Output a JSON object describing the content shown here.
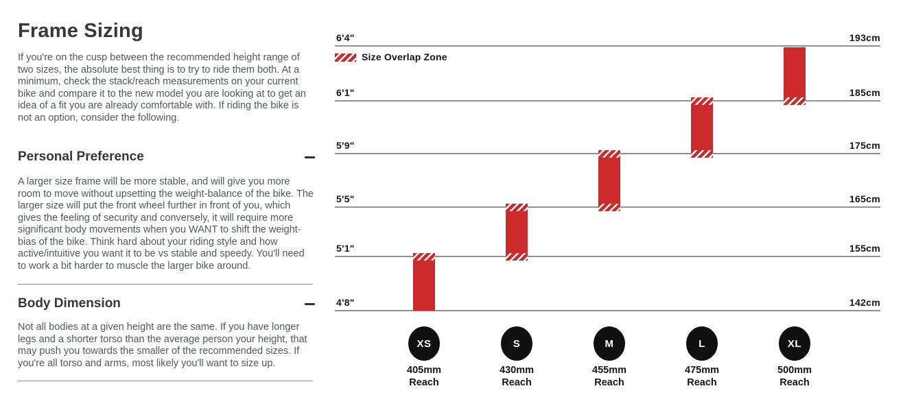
{
  "left": {
    "title": "Frame Sizing",
    "intro": "If you're on the cusp between the recommended height range of two sizes, the absolute best thing is to try to ride them both. At a minimum, check the stack/reach measurements on your current bike and compare it to the new model you are looking at to get an idea of a fit you are already comfortable with. If riding the bike is not an option, consider the following.",
    "sections": [
      {
        "heading": "Personal Preference",
        "collapse_icon": "minus",
        "body": "A larger size frame will be more stable, and will give you more room to move without upsetting the weight-balance of the bike. The larger size will put the front wheel further in front of you, which gives the feeling of security and conversely, it will require more significant body movements when you WANT to shift the weight-bias of the bike. Think hard about your riding style and how active/intuitive you want it to be vs stable and speedy. You'll need to work a bit harder to muscle the larger bike around."
      },
      {
        "heading": "Body Dimension",
        "collapse_icon": "minus",
        "body": "Not all bodies at a given height are the same. If you have longer legs and a shorter torso than the average person your height, that may push you towards the smaller of the recommended sizes. If you're all torso and arms, most likely you'll want to size up."
      }
    ]
  },
  "chart": {
    "legend_label": "Size Overlap Zone",
    "rows": [
      {
        "ft": "6'4\"",
        "cm": "193cm"
      },
      {
        "ft": "6'1\"",
        "cm": "185cm"
      },
      {
        "ft": "5'9\"",
        "cm": "175cm"
      },
      {
        "ft": "5'5\"",
        "cm": "165cm"
      },
      {
        "ft": "5'1\"",
        "cm": "155cm"
      },
      {
        "ft": "4'8\"",
        "cm": "142cm"
      }
    ],
    "sizes": [
      {
        "label": "XS",
        "reach_value": "405mm",
        "reach_word": "Reach",
        "top_row": 4,
        "bottom_row": 5,
        "overlap_top": true,
        "overlap_bottom": false
      },
      {
        "label": "S",
        "reach_value": "430mm",
        "reach_word": "Reach",
        "top_row": 3,
        "bottom_row": 4,
        "overlap_top": true,
        "overlap_bottom": true
      },
      {
        "label": "M",
        "reach_value": "455mm",
        "reach_word": "Reach",
        "top_row": 2,
        "bottom_row": 3,
        "overlap_top": true,
        "overlap_bottom": true
      },
      {
        "label": "L",
        "reach_value": "475mm",
        "reach_word": "Reach",
        "top_row": 1,
        "bottom_row": 2,
        "overlap_top": true,
        "overlap_bottom": true
      },
      {
        "label": "XL",
        "reach_value": "500mm",
        "reach_word": "Reach",
        "top_row": 0,
        "bottom_row": 1,
        "overlap_top": false,
        "overlap_bottom": true
      }
    ]
  },
  "chart_data": {
    "type": "bar",
    "subtype": "vertical-range-bars",
    "title": "",
    "legend": {
      "label": "Size Overlap Zone",
      "swatch": "red-white-diagonal-hatch",
      "position": "top-left"
    },
    "y_axis": {
      "left_tick_labels": [
        "6'4\"",
        "6'1\"",
        "5'9\"",
        "5'5\"",
        "5'1\"",
        "4'8\""
      ],
      "right_tick_labels": [
        "193cm",
        "185cm",
        "175cm",
        "165cm",
        "155cm",
        "142cm"
      ],
      "grid": true
    },
    "categories": [
      "XS",
      "S",
      "M",
      "L",
      "XL"
    ],
    "series": [
      {
        "name": "XS",
        "reach": "405mm Reach",
        "height_range_ft": [
          "4'8\"",
          "5'1\""
        ],
        "height_range_cm": [
          142,
          155
        ],
        "overlap_zone_top": true,
        "overlap_zone_bottom": false
      },
      {
        "name": "S",
        "reach": "430mm Reach",
        "height_range_ft": [
          "5'1\"",
          "5'5\""
        ],
        "height_range_cm": [
          155,
          165
        ],
        "overlap_zone_top": true,
        "overlap_zone_bottom": true
      },
      {
        "name": "M",
        "reach": "455mm Reach",
        "height_range_ft": [
          "5'5\"",
          "5'9\""
        ],
        "height_range_cm": [
          165,
          175
        ],
        "overlap_zone_top": true,
        "overlap_zone_bottom": true
      },
      {
        "name": "L",
        "reach": "475mm Reach",
        "height_range_ft": [
          "5'9\"",
          "6'1\""
        ],
        "height_range_cm": [
          175,
          185
        ],
        "overlap_zone_top": true,
        "overlap_zone_bottom": true
      },
      {
        "name": "XL",
        "reach": "500mm Reach",
        "height_range_ft": [
          "6'1\"",
          "6'4\""
        ],
        "height_range_cm": [
          185,
          193
        ],
        "overlap_zone_top": false,
        "overlap_zone_bottom": true
      }
    ],
    "colors": {
      "bar": "#cd2b2b",
      "size_badge": "#101010",
      "gridline": "#909090",
      "text": "#141414"
    }
  }
}
